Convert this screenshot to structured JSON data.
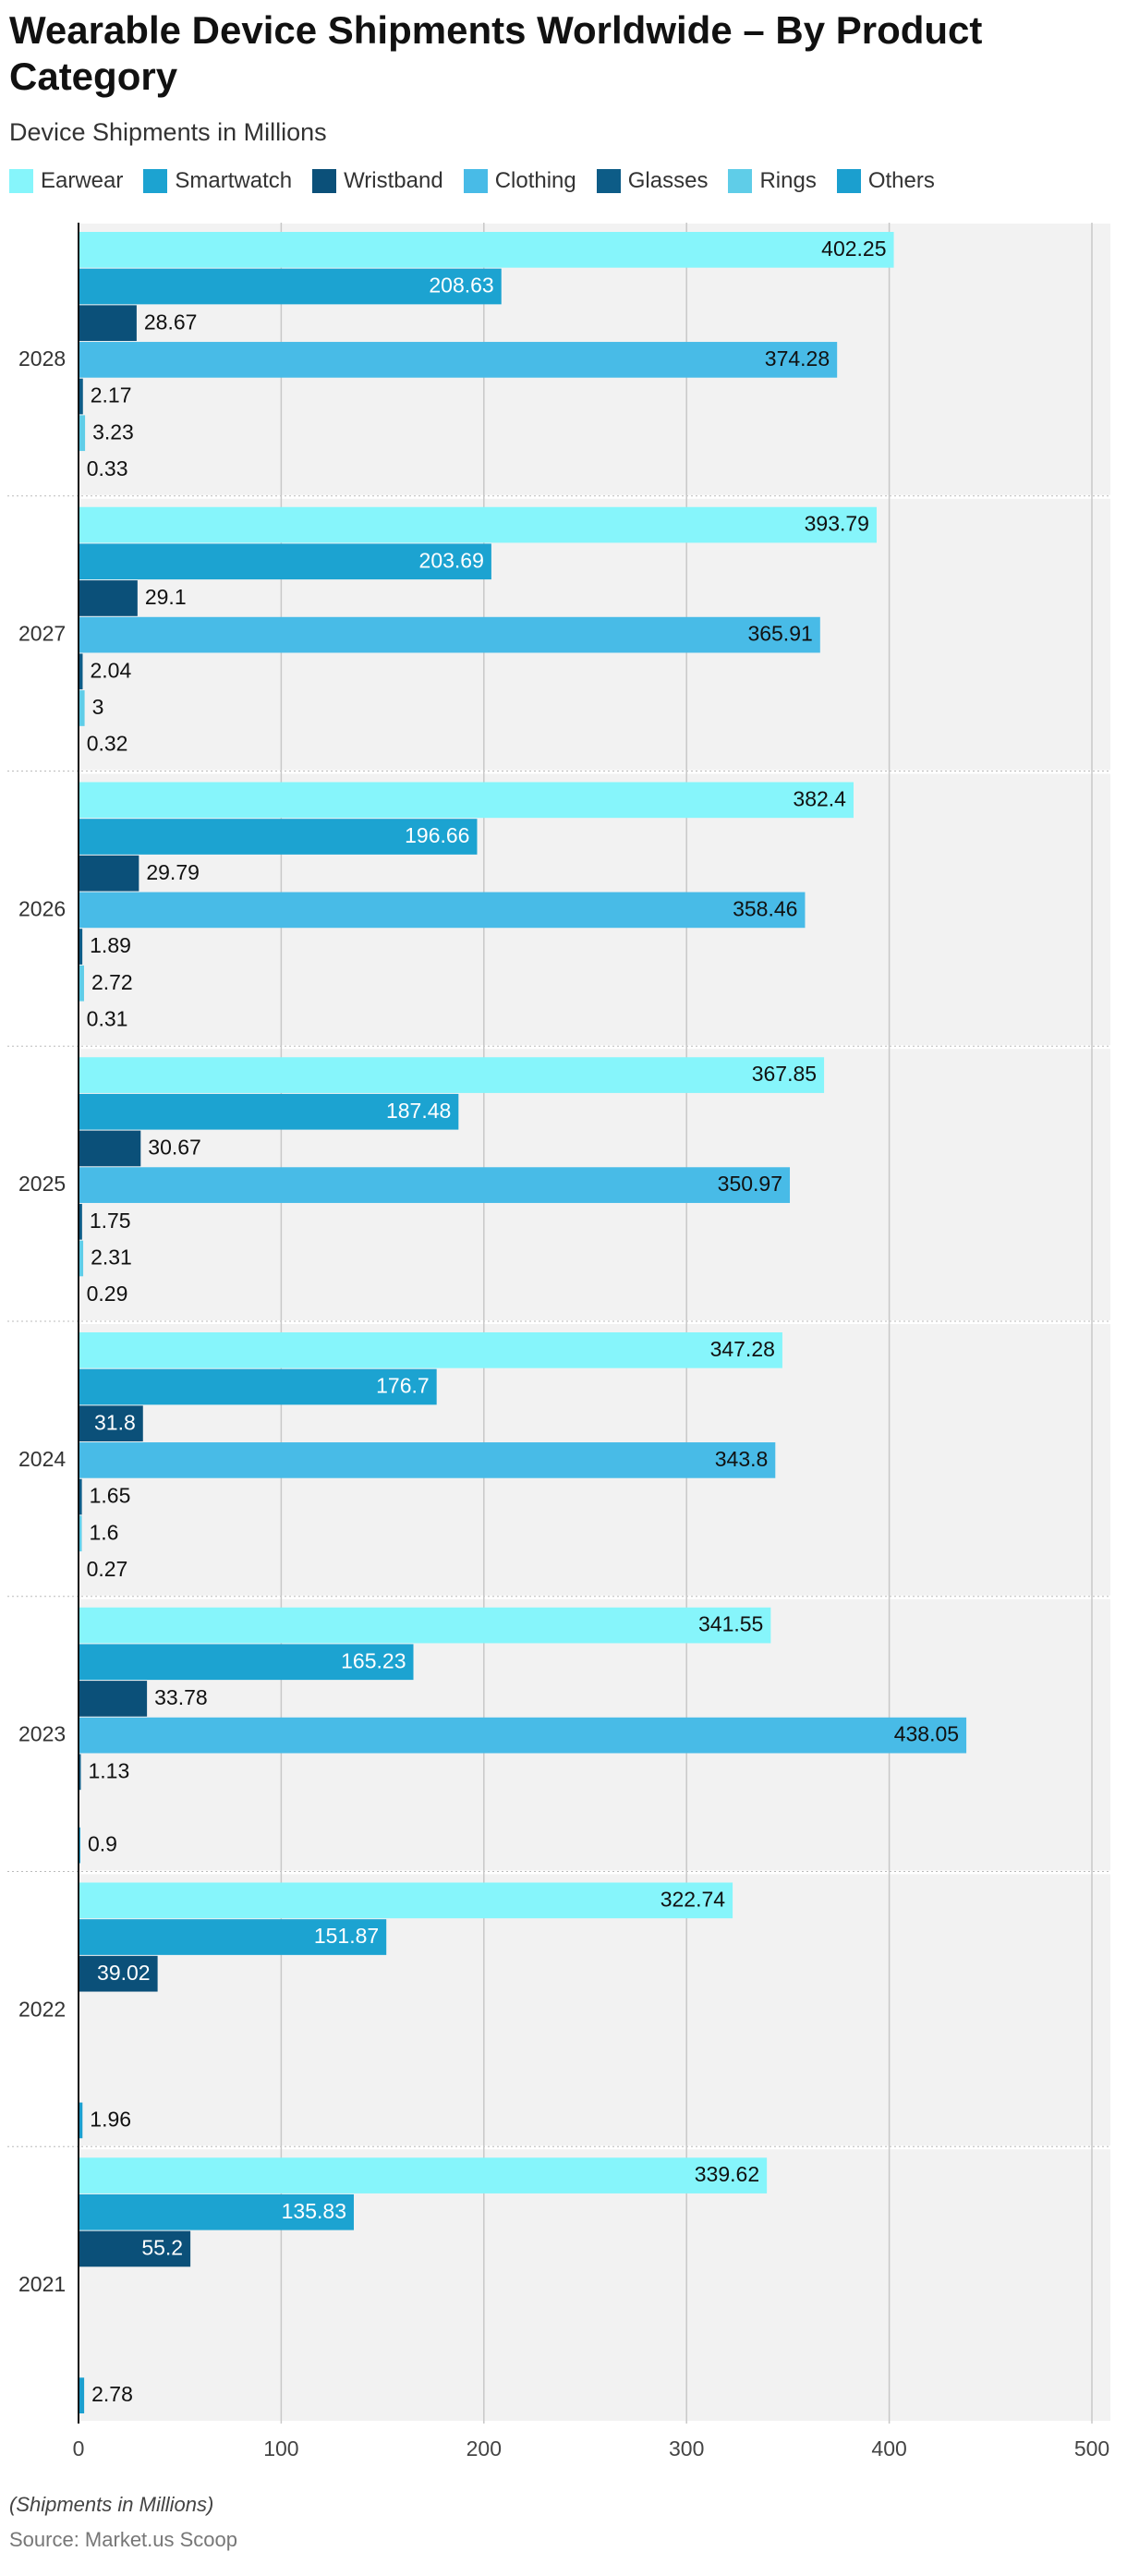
{
  "chart_data": {
    "type": "bar",
    "orientation": "horizontal",
    "title": "Wearable Device Shipments Worldwide – By Product Category",
    "subtitle": "Device Shipments in Millions",
    "note": "(Shipments in Millions)",
    "source": "Source: Market.us Scoop",
    "categories": [
      "2028",
      "2027",
      "2026",
      "2025",
      "2024",
      "2023",
      "2022",
      "2021"
    ],
    "series": [
      {
        "name": "Earwear",
        "color": "#86f5fb",
        "values": [
          402.25,
          393.79,
          382.4,
          367.85,
          347.28,
          341.55,
          322.74,
          339.62
        ]
      },
      {
        "name": "Smartwatch",
        "color": "#1ca3d1",
        "values": [
          208.63,
          203.69,
          196.66,
          187.48,
          176.7,
          165.23,
          151.87,
          135.83
        ]
      },
      {
        "name": "Wristband",
        "color": "#0b5079",
        "values": [
          28.67,
          29.1,
          29.79,
          30.67,
          31.8,
          33.78,
          39.02,
          55.2
        ]
      },
      {
        "name": "Clothing",
        "color": "#48bbe7",
        "values": [
          374.28,
          365.91,
          358.46,
          350.97,
          343.8,
          438.05,
          null,
          null
        ]
      },
      {
        "name": "Glasses",
        "color": "#0d5c87",
        "values": [
          2.17,
          2.04,
          1.89,
          1.75,
          1.65,
          1.13,
          null,
          null
        ]
      },
      {
        "name": "Rings",
        "color": "#5fcde8",
        "values": [
          3.23,
          3,
          2.72,
          2.31,
          1.6,
          null,
          null,
          null
        ]
      },
      {
        "name": "Others",
        "color": "#1b9fcf",
        "values": [
          0.33,
          0.32,
          0.31,
          0.29,
          0.27,
          0.9,
          1.96,
          2.78
        ]
      }
    ],
    "xlim": [
      0,
      500
    ],
    "xticks": [
      0,
      100,
      200,
      300,
      400,
      500
    ],
    "grid": true
  }
}
